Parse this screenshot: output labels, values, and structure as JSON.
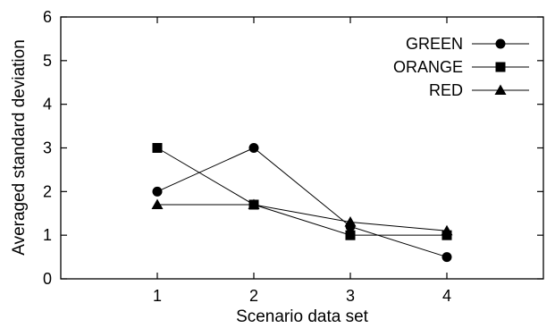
{
  "chart_data": {
    "type": "line",
    "x": [
      1,
      2,
      3,
      4
    ],
    "xlim": [
      0,
      5
    ],
    "ylim": [
      0,
      6
    ],
    "x_ticks": [
      "1",
      "2",
      "3",
      "4"
    ],
    "y_ticks": [
      "0",
      "1",
      "2",
      "3",
      "4",
      "5",
      "6"
    ],
    "xlabel": "Scenario data set",
    "ylabel": "Averaged standard deviation",
    "grid": false,
    "legend_position": "top-right",
    "series": [
      {
        "name": "GREEN",
        "marker": "circle",
        "color": "#000000",
        "values": [
          2,
          3,
          1.2,
          0.5
        ]
      },
      {
        "name": "ORANGE",
        "marker": "square",
        "color": "#000000",
        "values": [
          3,
          1.7,
          1.0,
          1.0
        ]
      },
      {
        "name": "RED",
        "marker": "triangle",
        "color": "#000000",
        "values": [
          1.7,
          1.7,
          1.3,
          1.1
        ]
      }
    ]
  }
}
